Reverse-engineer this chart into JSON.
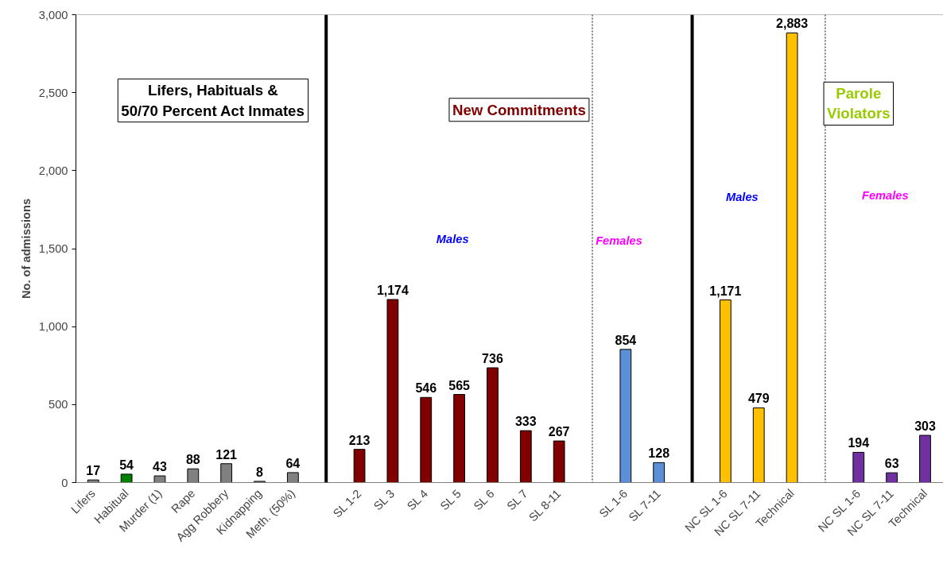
{
  "chart_data": {
    "type": "bar",
    "ylabel": "No. of admissions",
    "categories": [
      "Lifers",
      "Habitual",
      "Murder (1)",
      "Rape",
      "Agg Robbery",
      "Kidnapping",
      "Meth. (50%)",
      null,
      "SL 1-2",
      "SL 3",
      "SL 4",
      "SL 5",
      "SL 6",
      "SL 7",
      "SL 8-11",
      null,
      "SL 1-6",
      "SL 7-11",
      null,
      "NC SL 1-6",
      "NC SL 7-11",
      "Technical",
      null,
      "NC SL 1-6",
      "NC SL 7-11",
      "Technical"
    ],
    "values": [
      17,
      54,
      43,
      88,
      121,
      8,
      64,
      null,
      213,
      1174,
      546,
      565,
      736,
      333,
      267,
      null,
      854,
      128,
      null,
      1171,
      479,
      2883,
      null,
      194,
      63,
      303
    ],
    "colors": [
      "#808080",
      "#008000",
      "#808080",
      "#808080",
      "#808080",
      "#808080",
      "#808080",
      null,
      "#800000",
      "#800000",
      "#800000",
      "#800000",
      "#800000",
      "#800000",
      "#800000",
      null,
      "#5b8fd8",
      "#5b8fd8",
      null,
      "#ffc000",
      "#ffc000",
      "#ffc000",
      null,
      "#7030a0",
      "#7030a0",
      "#7030a0"
    ],
    "ylim": [
      0,
      3000
    ],
    "yticks": [
      0,
      {
        "value": 500,
        "label": "500"
      },
      {
        "value": 1000,
        "label": "1,000"
      },
      {
        "value": 1500,
        "label": "1,500"
      },
      {
        "value": 2000,
        "label": "2,000"
      },
      {
        "value": 2500,
        "label": "2,500"
      },
      {
        "value": 3000,
        "label": "3,000"
      }
    ],
    "grid": false,
    "value_labels": [
      "17",
      "54",
      "43",
      "88",
      "121",
      "8",
      "64",
      null,
      "213",
      "1,174",
      "546",
      "565",
      "736",
      "333",
      "267",
      null,
      "854",
      "128",
      null,
      "1,171",
      "479",
      "2,883",
      null,
      "194",
      "63",
      "303"
    ],
    "annotations": [
      "Lifers, Habituals &\n50/70 Percent Act Inmates",
      "New Commitments",
      "Parole\nViolators",
      "Males",
      "Females",
      "Males",
      "Females"
    ]
  }
}
